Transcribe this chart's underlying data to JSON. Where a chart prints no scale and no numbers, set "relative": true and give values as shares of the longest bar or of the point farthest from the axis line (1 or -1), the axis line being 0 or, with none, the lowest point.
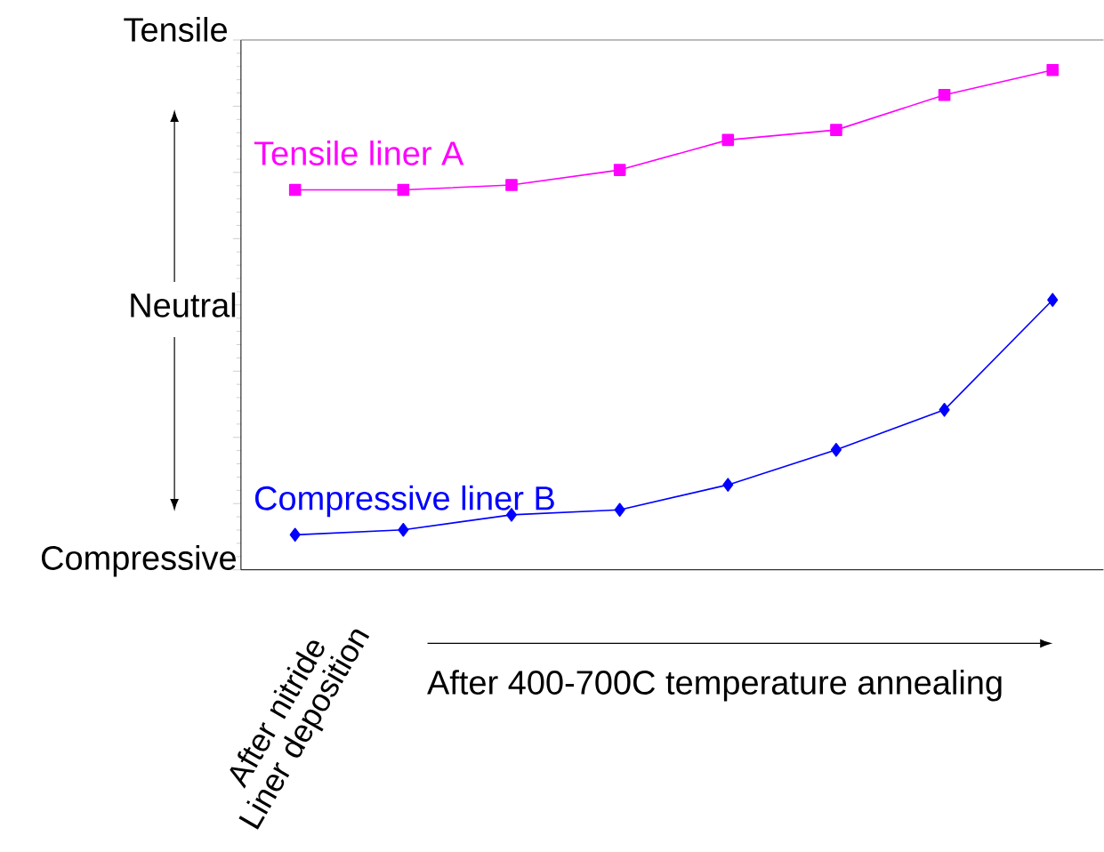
{
  "chart_data": {
    "type": "line",
    "relative": true,
    "categories": [
      null,
      null,
      null,
      null,
      null,
      null,
      null,
      null
    ],
    "series": [
      {
        "name": "Tensile liner A",
        "color": "#ff00ff",
        "marker": "square",
        "values": [
          0.76,
          0.76,
          0.77,
          0.8,
          0.86,
          0.88,
          0.95,
          1
        ]
      },
      {
        "name": "Compressive liner B",
        "color": "#0000ff",
        "marker": "diamond",
        "values": [
          0.07,
          0.08,
          0.11,
          0.12,
          0.17,
          0.24,
          0.32,
          0.54
        ]
      }
    ],
    "annotations": [
      "Tensile",
      "Neutral",
      "Compressive",
      "After nitride Liner deposition",
      "After 400-700C temperature annealing"
    ],
    "legend": false,
    "grid": false
  }
}
